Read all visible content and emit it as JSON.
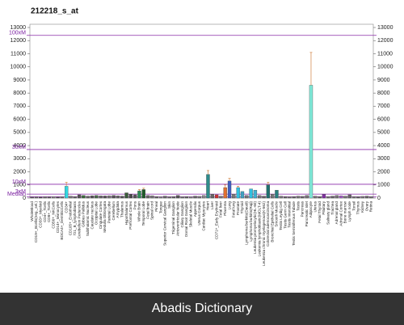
{
  "chart_data": {
    "type": "bar",
    "title": "212218_s_at",
    "categories": [
      "WholeBlood",
      "CD19+_Bcells(neg._sel.)",
      "CD33+_Myeloid",
      "CD4+_Tcells",
      "CD8+_Tcells",
      "CD56+_NKCells",
      "CD14+_Monocytes",
      "BDCA4+_DentriticCells",
      "CD34+",
      "CD105+_Endothelial",
      "721_B_lymphoblasts",
      "Cerebellum Peduncles",
      "Globus Pallidus",
      "Subthalamic Nucleus",
      "Caudate nucleus",
      "Occipital Lobe",
      "Cingulate Cortex",
      "Medulla Oblongata",
      "Parietal Lobe",
      "Cerebellum",
      "Amygdala",
      "Thalamus",
      "Hypothalamus",
      "Prefrontal Cortex",
      "Pons",
      "Whole Brain",
      "Temporal Lobe",
      "Fetal brain",
      "Spinal cord",
      "Pineal",
      "Tongue",
      "Superior Cervical Ganglion",
      "Skin",
      "Trigeminal Ganglion",
      "Atrioventricular Node",
      "Ciliary Ganglion",
      "Dorsal Root Ganglion",
      "Skeletal Muscle",
      "Appendix",
      "Uterus Corpus",
      "Cardiac Myocytes",
      "Heart",
      "Liver",
      "CD71+_Early Erythroid",
      "Fetal liver",
      "Placenta",
      "Lung",
      "Fetal lung",
      "Prostate",
      "Thyroid",
      "Lymphoma burkitts(Daudi)",
      "Lymphoma burkitts(Raji)",
      "Leukemia promyelocytic(HL-60)",
      "Leukemia lymphoblastic(MOLT-4)",
      "Leukemia chronic myelogenous(K-562)",
      "Colorectal adenocarcinoma",
      "Bronchial Epithelial Cells",
      "Smooth Muscle",
      "Testis Leydig Cell",
      "Testis Germ Cell",
      "Testis Interstitial",
      "Testis Seminiferous Tubule",
      "Testis",
      "Pancreas",
      "Pancreatic Islet",
      "Adipocyte",
      "Uterus",
      "Fetal Thyroid",
      "Pituitary",
      "Salivary gland",
      "Trachea",
      "Adrenal gland",
      "Adrenal Cortex",
      "Bone marrow",
      "Lymph node",
      "Tonsil",
      "Thymus",
      "Kidney",
      "Ovary",
      "Retina"
    ],
    "values": [
      80,
      90,
      70,
      100,
      90,
      110,
      80,
      100,
      900,
      150,
      120,
      250,
      200,
      150,
      180,
      200,
      170,
      160,
      180,
      200,
      170,
      150,
      400,
      300,
      250,
      550,
      650,
      200,
      180,
      120,
      100,
      150,
      100,
      120,
      200,
      110,
      120,
      100,
      150,
      130,
      200,
      1800,
      300,
      250,
      150,
      800,
      1300,
      300,
      800,
      500,
      200,
      700,
      600,
      200,
      150,
      1000,
      300,
      600,
      150,
      120,
      100,
      120,
      150,
      130,
      200,
      8600,
      150,
      120,
      300,
      120,
      150,
      200,
      180,
      150,
      250,
      120,
      100,
      130,
      150,
      120
    ],
    "errors": [
      null,
      null,
      null,
      null,
      null,
      null,
      null,
      null,
      300,
      null,
      null,
      null,
      null,
      null,
      null,
      null,
      null,
      null,
      null,
      null,
      null,
      null,
      null,
      null,
      null,
      100,
      100,
      null,
      null,
      null,
      null,
      null,
      null,
      null,
      null,
      null,
      null,
      null,
      null,
      null,
      null,
      300,
      null,
      null,
      null,
      200,
      200,
      null,
      100,
      null,
      null,
      null,
      null,
      null,
      null,
      200,
      null,
      null,
      null,
      null,
      null,
      null,
      null,
      null,
      null,
      2500,
      null,
      null,
      null,
      null,
      null,
      null,
      null,
      null,
      null,
      null,
      null,
      null,
      null,
      null
    ],
    "colors": [
      "#666",
      "#777",
      "#555",
      "#777",
      "#666",
      "#888",
      "#555",
      "#777",
      "#33d6e0",
      "#777",
      "#666",
      "#555",
      "#3a6b3a",
      "#666",
      "#555",
      "#4a6a4a",
      "#666",
      "#555",
      "#777",
      "#555",
      "#666",
      "#555",
      "#3b5b3b",
      "#4a4a4a",
      "#555",
      "#2e8b57",
      "#1f5a2a",
      "#666",
      "#777",
      "#666",
      "#888",
      "#666",
      "#777",
      "#666",
      "#555",
      "#777",
      "#666",
      "#888",
      "#666",
      "#777",
      "#888",
      "#2e8b8b",
      "#666",
      "#cc3333",
      "#777",
      "#e07030",
      "#4060c0",
      "#777",
      "#30c0e0",
      "#40a0c0",
      "#777",
      "#30c0e0",
      "#40b0d0",
      "#777",
      "#666",
      "#207070",
      "#777",
      "#2a8080",
      "#777",
      "#666",
      "#777",
      "#666",
      "#777",
      "#666",
      "#777",
      "#7fe8d8",
      "#777",
      "#666",
      "#8030a0",
      "#777",
      "#666",
      "#777",
      "#a060c0",
      "#777",
      "#666",
      "#777",
      "#666",
      "#777",
      "#666",
      "#777"
    ],
    "error_color": "#d08040",
    "ylim": [
      0,
      13000
    ],
    "yticks": [
      0,
      1000,
      2000,
      3000,
      4000,
      5000,
      6000,
      7000,
      8000,
      9000,
      10000,
      11000,
      12000,
      13000
    ],
    "reference_lines": [
      {
        "label": "100xM",
        "value": 12400
      },
      {
        "label": "30xM",
        "value": 3700
      },
      {
        "label": "10xM",
        "value": 1050
      },
      {
        "label": "3xM",
        "value": 300
      },
      {
        "label": "Median",
        "value": 100
      }
    ],
    "reference_color": "#8a2aa8"
  },
  "footer": "Abadis Dictionary"
}
